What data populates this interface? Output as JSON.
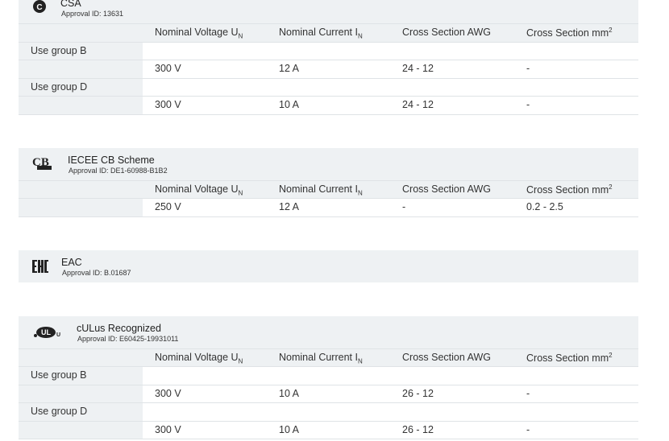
{
  "approvals": [
    {
      "name": "CSA",
      "id_label": "Approval ID: 13631",
      "columns": [
        {
          "text": "Nominal Voltage U",
          "sub": "N"
        },
        {
          "text": "Nominal Current I",
          "sub": "N"
        },
        {
          "text": "Cross Section AWG"
        },
        {
          "text": "Cross Section mm",
          "sup": "2"
        }
      ],
      "groups": [
        {
          "label": "Use group B",
          "values": [
            "300 V",
            "12 A",
            "24 - 12",
            "-"
          ]
        },
        {
          "label": "Use group D",
          "values": [
            "300 V",
            "10 A",
            "24 - 12",
            "-"
          ]
        }
      ]
    },
    {
      "name": "IECEE CB Scheme",
      "id_label": "Approval ID: DE1-60988-B1B2",
      "columns": [
        {
          "text": "Nominal Voltage U",
          "sub": "N"
        },
        {
          "text": "Nominal Current I",
          "sub": "N"
        },
        {
          "text": "Cross Section AWG"
        },
        {
          "text": "Cross Section mm",
          "sup": "2"
        }
      ],
      "groups": [
        {
          "values": [
            "250 V",
            "12 A",
            "-",
            "0.2 - 2.5"
          ]
        }
      ]
    },
    {
      "name": "EAC",
      "id_label": "Approval ID: B.01687"
    },
    {
      "name": "cULus Recognized",
      "id_label": "Approval ID: E60425-19931011",
      "columns": [
        {
          "text": "Nominal Voltage U",
          "sub": "N"
        },
        {
          "text": "Nominal Current I",
          "sub": "N"
        },
        {
          "text": "Cross Section AWG"
        },
        {
          "text": "Cross Section mm",
          "sup": "2"
        }
      ],
      "groups": [
        {
          "label": "Use group B",
          "values": [
            "300 V",
            "10 A",
            "26 - 12",
            "-"
          ]
        },
        {
          "label": "Use group D",
          "values": [
            "300 V",
            "10 A",
            "26 - 12",
            "-"
          ]
        }
      ]
    }
  ]
}
